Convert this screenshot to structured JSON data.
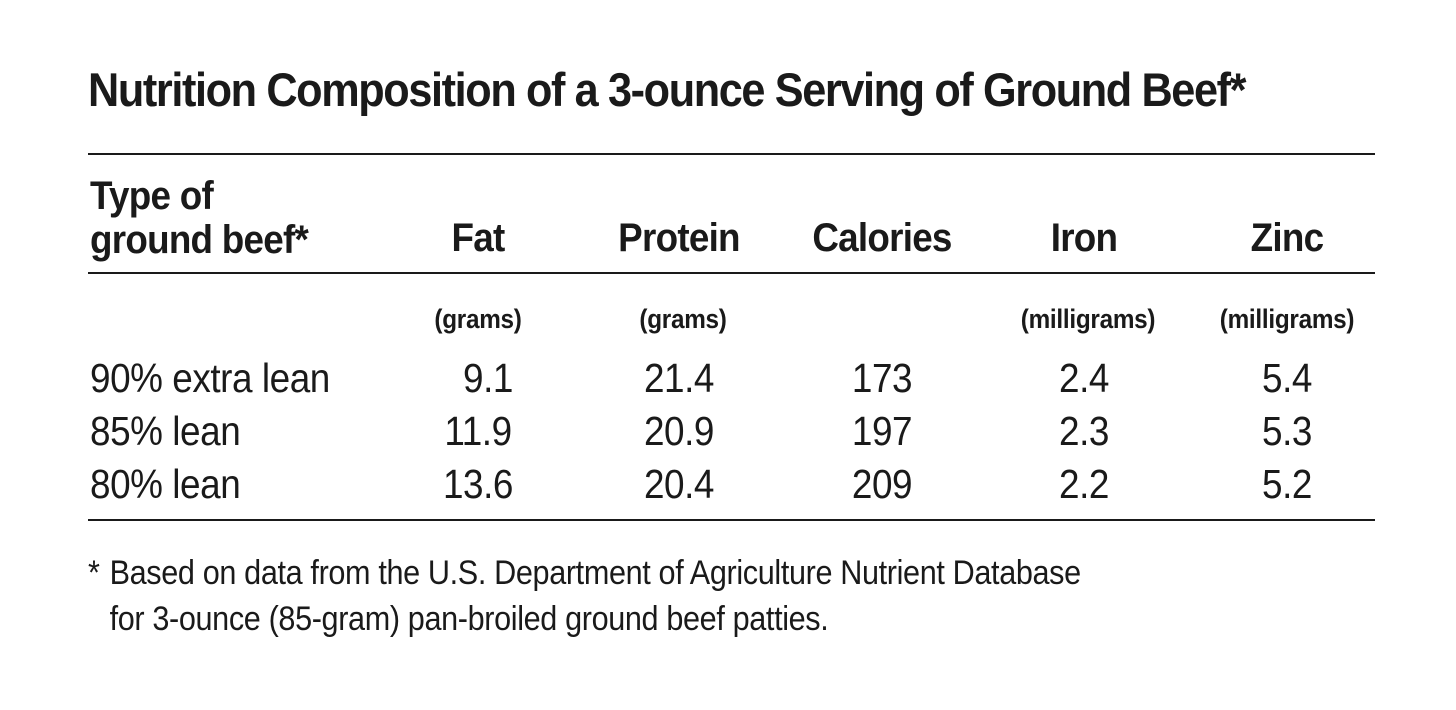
{
  "title": "Nutrition Composition of a 3-ounce Serving of Ground Beef*",
  "table": {
    "first_header_line1": "Type of",
    "first_header_line2": "ground beef*",
    "columns": [
      "Fat",
      "Protein",
      "Calories",
      "Iron",
      "Zinc"
    ],
    "units": [
      "(grams)",
      "(grams)",
      "",
      "(milligrams)",
      "(milligrams)"
    ],
    "rows": [
      {
        "label": "90% extra lean",
        "values": [
          "9.1",
          "21.4",
          "173",
          "2.4",
          "5.4"
        ]
      },
      {
        "label": "85% lean",
        "values": [
          "11.9",
          "20.9",
          "197",
          "2.3",
          "5.3"
        ]
      },
      {
        "label": "80% lean",
        "values": [
          "13.6",
          "20.4",
          "209",
          "2.2",
          "5.2"
        ]
      }
    ]
  },
  "footnote": {
    "marker": "*",
    "line1": "Based on data from the U.S. Department of Agriculture Nutrient Database",
    "line2": "for 3-ounce (85-gram) pan-broiled ground beef patties."
  }
}
